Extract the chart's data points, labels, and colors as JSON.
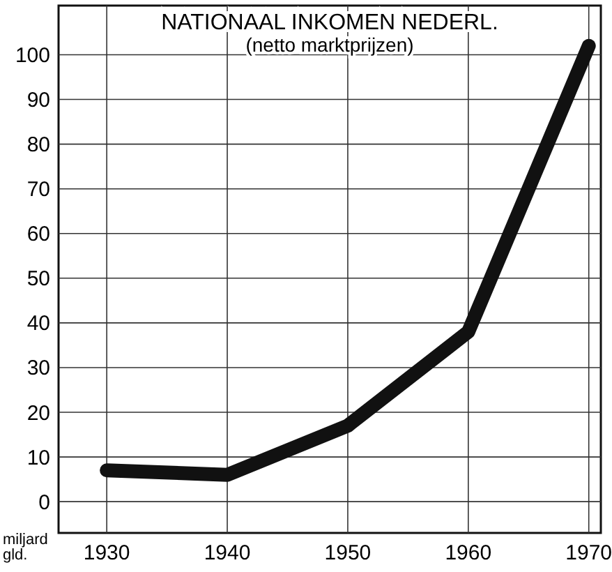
{
  "chart_data": {
    "type": "line",
    "title": "NATIONAAL INKOMEN NEDERL.",
    "subtitle": "(netto marktprijzen)",
    "ylabel": "miljard gld.",
    "x": [
      1930,
      1940,
      1950,
      1960,
      1970
    ],
    "series": [
      {
        "color": "#111111",
        "values": [
          7,
          6,
          17,
          38,
          102
        ]
      }
    ],
    "xlim": [
      1926,
      1971
    ],
    "ylim": [
      -7,
      111
    ],
    "xticks": [
      1930,
      1940,
      1950,
      1960,
      1970
    ],
    "yticks": [
      0,
      10,
      20,
      30,
      40,
      50,
      60,
      70,
      80,
      90,
      100
    ],
    "grid": true,
    "marker": "none",
    "line_style": "solid"
  }
}
